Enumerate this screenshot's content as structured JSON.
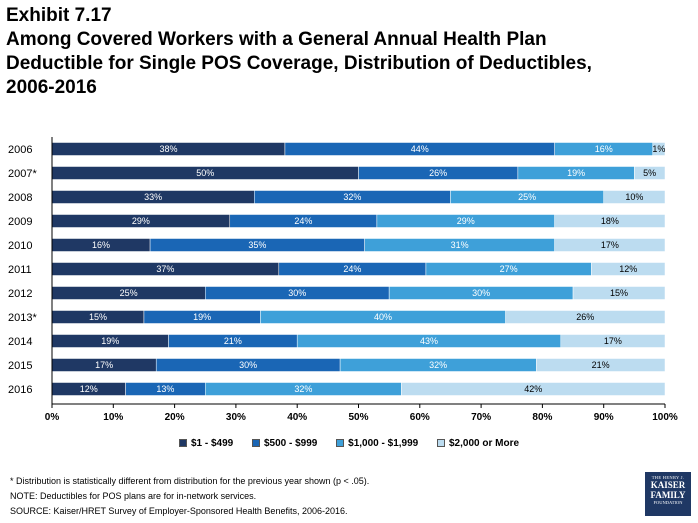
{
  "header": {
    "exhibit": "Exhibit 7.17",
    "title_lines": [
      "Among Covered Workers with a General Annual Health Plan",
      "Deductible for Single POS Coverage, Distribution of Deductibles,",
      "2006-2016"
    ]
  },
  "chart_data": {
    "type": "bar",
    "orientation": "horizontal",
    "stacked": true,
    "categories": [
      "2006",
      "2007*",
      "2008",
      "2009",
      "2010",
      "2011",
      "2012",
      "2013*",
      "2014",
      "2015",
      "2016"
    ],
    "series": [
      {
        "name": "$1 - $499",
        "color": "#1f3864",
        "values": [
          38,
          50,
          33,
          29,
          16,
          37,
          25,
          15,
          19,
          17,
          12
        ]
      },
      {
        "name": "$500 - $999",
        "color": "#1a66b5",
        "values": [
          44,
          26,
          32,
          24,
          35,
          24,
          30,
          19,
          21,
          30,
          13
        ]
      },
      {
        "name": "$1,000 - $1,999",
        "color": "#3ea0d9",
        "values": [
          16,
          19,
          25,
          29,
          31,
          27,
          30,
          40,
          43,
          32,
          32
        ]
      },
      {
        "name": "$2,000 or More",
        "color": "#bcdcf0",
        "values": [
          1,
          5,
          10,
          18,
          17,
          12,
          15,
          26,
          17,
          21,
          42
        ]
      }
    ],
    "xlim": [
      0,
      100
    ],
    "xticks": [
      "0%",
      "10%",
      "20%",
      "30%",
      "40%",
      "50%",
      "60%",
      "70%",
      "80%",
      "90%",
      "100%"
    ],
    "legend_position": "bottom",
    "grid": false
  },
  "notes": {
    "footnote": "* Distribution is statistically different from distribution for the previous year shown (p < .05).",
    "note": "NOTE:  Deductibles for POS plans are for in-network services.",
    "source": "SOURCE:  Kaiser/HRET Survey of Employer-Sponsored Health Benefits, 2006-2016."
  },
  "logo": {
    "line1": "THE HENRY J.",
    "line2": "KAISER",
    "line3": "FAMILY",
    "line4": "FOUNDATION",
    "background": "#1f3864"
  }
}
